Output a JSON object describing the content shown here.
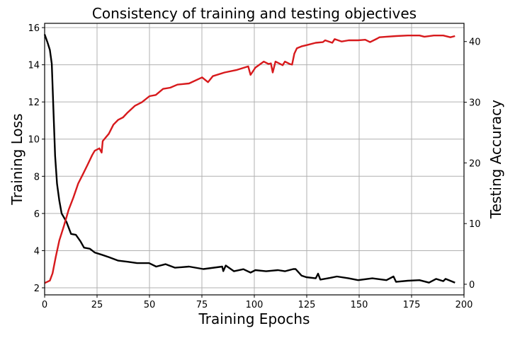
{
  "chart_data": {
    "type": "line",
    "title": "Consistency of training and testing objectives",
    "xlabel": "Training Epochs",
    "ylabel": "Training Loss",
    "ylabel_right": "Testing Accuracy",
    "xlim": [
      0,
      200
    ],
    "ylim": [
      1.62,
      16.23
    ],
    "ylim_right": [
      -1.75,
      43.0
    ],
    "xticks": [
      0,
      25,
      50,
      75,
      100,
      125,
      150,
      175,
      200
    ],
    "yticks": [
      2,
      4,
      6,
      8,
      10,
      12,
      14,
      16
    ],
    "yticks_right": [
      0,
      10,
      20,
      30,
      40
    ],
    "grid": true,
    "series": [
      {
        "name": "Training Loss",
        "axis": "left",
        "color": "#000000",
        "x": [
          0,
          1.4,
          2.5,
          3.4,
          4.2,
          5,
          5.9,
          7,
          8.1,
          10.4,
          12.6,
          14.9,
          17.1,
          18.8,
          21.6,
          23.9,
          27.2,
          30.6,
          35.1,
          39.6,
          44.1,
          49.8,
          53.2,
          57.7,
          62.2,
          68.9,
          75.7,
          84.7,
          85.2,
          86.4,
          90.3,
          94.8,
          98.2,
          100.5,
          105.6,
          111.3,
          114.6,
          118.6,
          119.7,
          122.5,
          124.8,
          129.3,
          130.4,
          131.5,
          136,
          139.4,
          145,
          149.5,
          156.3,
          163,
          166.4,
          167.6,
          173.2,
          178.8,
          183.3,
          186.7,
          190.1,
          191.2,
          195.7
        ],
        "y": [
          15.64,
          15.2,
          14.8,
          14.05,
          11.6,
          9.1,
          7.6,
          6.7,
          6.0,
          5.55,
          4.9,
          4.85,
          4.5,
          4.16,
          4.1,
          3.9,
          3.78,
          3.65,
          3.46,
          3.4,
          3.33,
          3.33,
          3.14,
          3.27,
          3.08,
          3.14,
          3.01,
          3.14,
          2.9,
          3.2,
          2.89,
          3.0,
          2.82,
          2.95,
          2.89,
          2.95,
          2.89,
          3.01,
          3.01,
          2.66,
          2.57,
          2.51,
          2.76,
          2.44,
          2.53,
          2.61,
          2.51,
          2.41,
          2.51,
          2.41,
          2.61,
          2.32,
          2.38,
          2.41,
          2.28,
          2.48,
          2.36,
          2.48,
          2.28
        ]
      },
      {
        "name": "Testing Accuracy",
        "axis": "right",
        "color": "#d7191c",
        "x": [
          0,
          2.5,
          3.8,
          5.3,
          7,
          9.2,
          11.5,
          13.7,
          16,
          18.2,
          20.5,
          22.7,
          23.9,
          26.1,
          27.2,
          27.7,
          30.6,
          32.8,
          35.1,
          37.4,
          39.6,
          43,
          46.4,
          50,
          53,
          56.5,
          59.9,
          63.3,
          68.9,
          75.1,
          77.9,
          80.2,
          85.8,
          91.4,
          97.1,
          98.2,
          100.5,
          104.5,
          106.8,
          107.9,
          108.8,
          110.1,
          113.5,
          114.6,
          116.9,
          118,
          119.1,
          120.3,
          122.5,
          124.8,
          129.3,
          132.7,
          133.8,
          137.2,
          138.3,
          141.7,
          145,
          149.5,
          152.9,
          155.2,
          158.6,
          159.7,
          163,
          167.6,
          173.2,
          178.8,
          181.1,
          185.6,
          190.1,
          193.5,
          195.7
        ],
        "y": [
          0.2,
          0.6,
          1.8,
          4.5,
          7.2,
          9.6,
          12.3,
          14.3,
          16.6,
          18.1,
          19.7,
          21.3,
          22.0,
          22.4,
          21.7,
          23.6,
          24.8,
          26.3,
          27.1,
          27.5,
          28.3,
          29.4,
          30.0,
          31.0,
          31.2,
          32.2,
          32.4,
          32.9,
          33.1,
          34.1,
          33.3,
          34.3,
          34.9,
          35.3,
          35.9,
          34.5,
          35.7,
          36.7,
          36.3,
          36.4,
          34.9,
          36.7,
          36.1,
          36.7,
          36.3,
          36.2,
          38.0,
          38.9,
          39.2,
          39.4,
          39.8,
          39.9,
          40.2,
          39.8,
          40.4,
          40.0,
          40.2,
          40.2,
          40.3,
          39.9,
          40.5,
          40.7,
          40.8,
          40.9,
          41.0,
          41.0,
          40.8,
          41.0,
          41.0,
          40.7,
          40.9
        ]
      }
    ]
  }
}
